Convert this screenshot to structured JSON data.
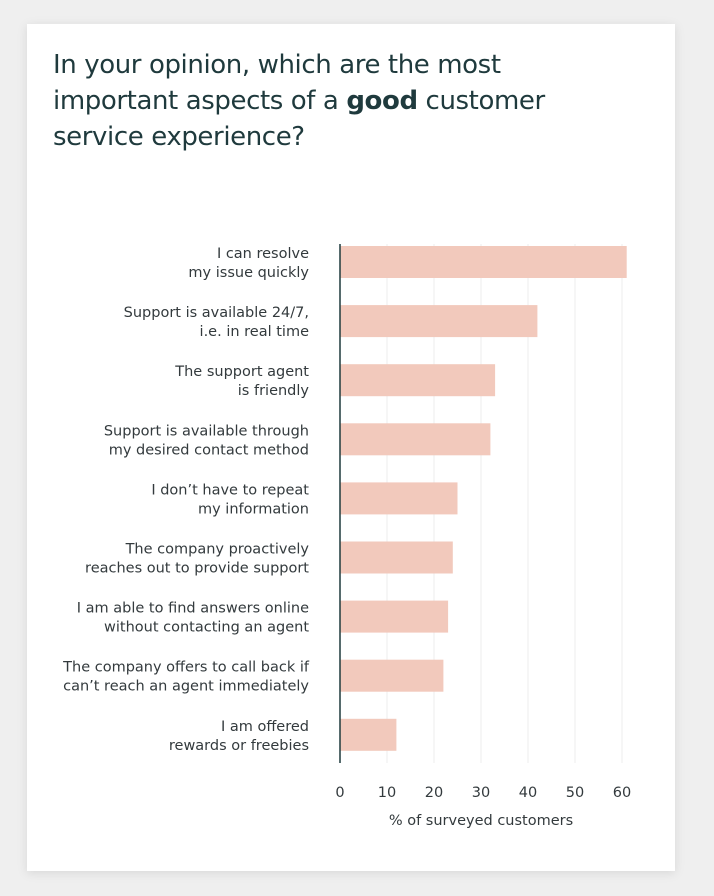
{
  "title": {
    "before": "In your opinion, which are the most important aspects of a ",
    "emphasis": "good",
    "after": " customer service experience?"
  },
  "colors": {
    "bar": "#f2c9bc",
    "grid": "#ececec",
    "axis": "#1f3a3d",
    "title": "#1f3a3d"
  },
  "chart_data": {
    "type": "bar",
    "orientation": "horizontal",
    "categories": [
      [
        "I can resolve",
        "my issue quickly"
      ],
      [
        "Support is available 24/7,",
        "i.e. in real time"
      ],
      [
        "The support agent",
        "is friendly"
      ],
      [
        "Support is available through",
        "my desired contact method"
      ],
      [
        "I don’t have to repeat",
        "my information"
      ],
      [
        "The company proactively",
        "reaches out to provide support"
      ],
      [
        "I am able to find answers online",
        "without contacting an agent"
      ],
      [
        "The company offers to call back if",
        "can’t reach an agent immediately"
      ],
      [
        "I am offered",
        "rewards or freebies"
      ]
    ],
    "values": [
      61,
      42,
      33,
      32,
      25,
      24,
      23,
      22,
      12
    ],
    "xticks": [
      0,
      10,
      20,
      30,
      40,
      50,
      60
    ],
    "xlim": [
      0,
      60
    ],
    "xlabel": "% of surveyed customers",
    "ylabel": "",
    "grid": true
  }
}
